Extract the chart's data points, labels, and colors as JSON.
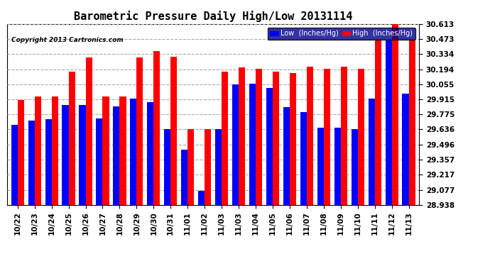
{
  "title": "Barometric Pressure Daily High/Low 20131114",
  "copyright": "Copyright 2013 Cartronics.com",
  "legend_low": "Low  (Inches/Hg)",
  "legend_high": "High  (Inches/Hg)",
  "dates": [
    "10/22",
    "10/23",
    "10/24",
    "10/25",
    "10/26",
    "10/27",
    "10/28",
    "10/29",
    "10/30",
    "10/31",
    "11/01",
    "11/02",
    "11/03",
    "11/03",
    "11/04",
    "11/05",
    "11/06",
    "11/07",
    "11/08",
    "11/09",
    "11/10",
    "11/11",
    "11/12",
    "11/13"
  ],
  "low_values": [
    29.68,
    29.72,
    29.73,
    29.86,
    29.86,
    29.74,
    29.85,
    29.92,
    29.89,
    29.64,
    29.45,
    29.07,
    29.64,
    30.05,
    30.06,
    30.02,
    29.84,
    29.8,
    29.65,
    29.65,
    29.64,
    29.92,
    30.46,
    29.97
  ],
  "high_values": [
    29.91,
    29.94,
    29.94,
    30.17,
    30.3,
    29.94,
    29.94,
    30.3,
    30.36,
    30.31,
    29.64,
    29.64,
    30.17,
    30.21,
    30.2,
    30.17,
    30.16,
    30.22,
    30.2,
    30.22,
    30.2,
    30.47,
    30.62,
    30.47
  ],
  "ylim_min": 28.938,
  "ylim_max": 30.613,
  "yticks": [
    28.938,
    29.077,
    29.217,
    29.357,
    29.496,
    29.636,
    29.775,
    29.915,
    30.055,
    30.194,
    30.334,
    30.473,
    30.613
  ],
  "low_color": "#0000FF",
  "high_color": "#FF0000",
  "bg_color": "#FFFFFF",
  "plot_bg_color": "#FFFFFF",
  "grid_color": "#AAAAAA",
  "title_fontsize": 11,
  "tick_fontsize": 7.5,
  "bar_width": 0.38
}
